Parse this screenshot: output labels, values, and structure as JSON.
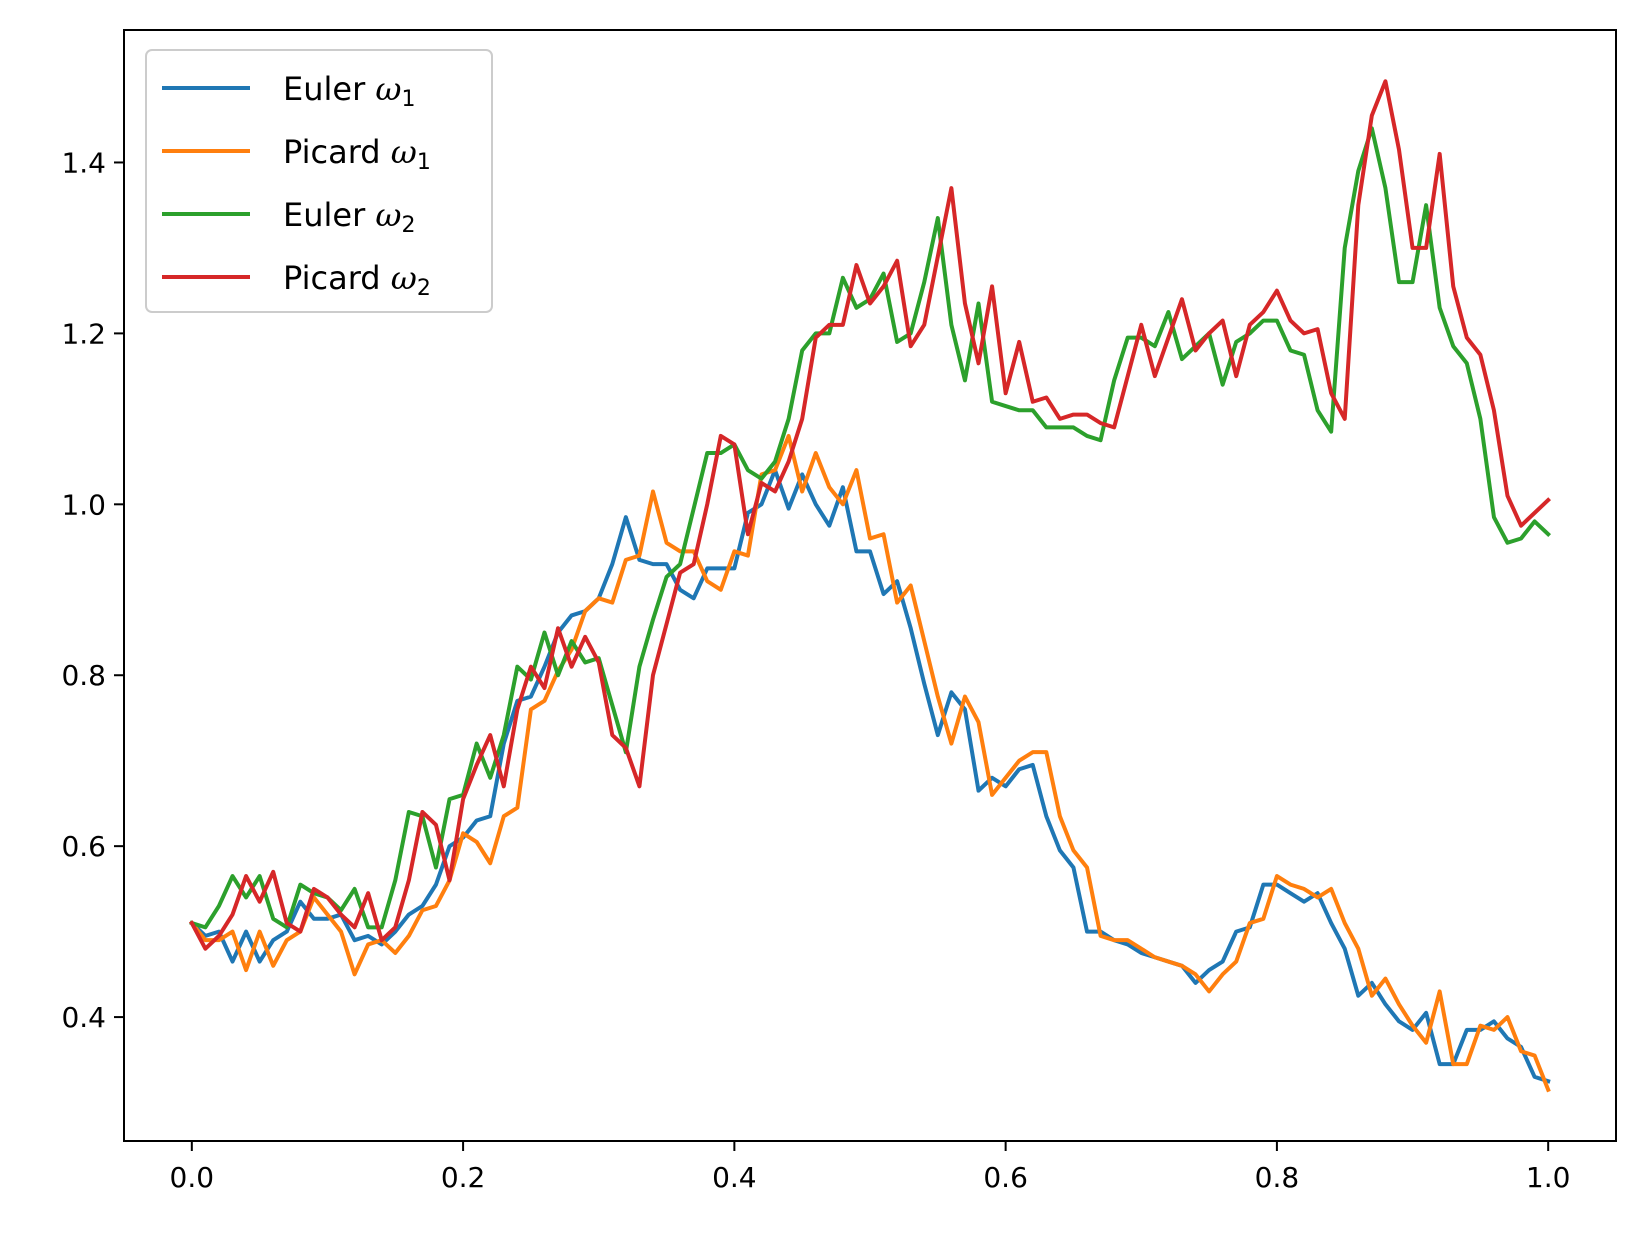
{
  "chart_data": {
    "type": "line",
    "title": "",
    "xlabel": "",
    "ylabel": "",
    "xlim": [
      -0.05,
      1.05
    ],
    "ylim": [
      0.255,
      1.555
    ],
    "xticks": [
      0.0,
      0.2,
      0.4,
      0.6,
      0.8,
      1.0
    ],
    "xtick_labels": [
      "0.0",
      "0.2",
      "0.4",
      "0.6",
      "0.8",
      "1.0"
    ],
    "yticks": [
      0.4,
      0.6,
      0.8,
      1.0,
      1.2,
      1.4
    ],
    "ytick_labels": [
      "0.4",
      "0.6",
      "0.8",
      "1.0",
      "1.2",
      "1.4"
    ],
    "grid": false,
    "legend_position": "top-left",
    "x_start": 0.0,
    "x_step": 0.01,
    "series": [
      {
        "name": "Euler",
        "symbol": "ω",
        "subscript": "1",
        "color": "#1f77b4",
        "values": [
          0.51,
          0.495,
          0.5,
          0.465,
          0.5,
          0.465,
          0.49,
          0.5,
          0.535,
          0.515,
          0.515,
          0.52,
          0.49,
          0.495,
          0.485,
          0.5,
          0.52,
          0.53,
          0.555,
          0.6,
          0.61,
          0.63,
          0.635,
          0.72,
          0.77,
          0.775,
          0.81,
          0.85,
          0.87,
          0.875,
          0.89,
          0.93,
          0.985,
          0.935,
          0.93,
          0.93,
          0.9,
          0.89,
          0.925,
          0.925,
          0.925,
          0.99,
          1.0,
          1.04,
          0.995,
          1.035,
          1.0,
          0.975,
          1.02,
          0.945,
          0.945,
          0.895,
          0.91,
          0.855,
          0.79,
          0.73,
          0.78,
          0.76,
          0.665,
          0.68,
          0.67,
          0.69,
          0.695,
          0.635,
          0.595,
          0.575,
          0.5,
          0.5,
          0.49,
          0.485,
          0.475,
          0.47,
          0.465,
          0.46,
          0.44,
          0.455,
          0.465,
          0.5,
          0.505,
          0.555,
          0.555,
          0.545,
          0.535,
          0.545,
          0.51,
          0.48,
          0.425,
          0.44,
          0.415,
          0.395,
          0.385,
          0.405,
          0.345,
          0.345,
          0.385,
          0.385,
          0.395,
          0.375,
          0.365,
          0.33,
          0.325
        ]
      },
      {
        "name": "Picard",
        "symbol": "ω",
        "subscript": "1",
        "color": "#ff7f0e",
        "values": [
          0.51,
          0.49,
          0.49,
          0.5,
          0.455,
          0.5,
          0.46,
          0.49,
          0.5,
          0.54,
          0.52,
          0.5,
          0.45,
          0.485,
          0.49,
          0.475,
          0.495,
          0.525,
          0.53,
          0.56,
          0.615,
          0.605,
          0.58,
          0.635,
          0.645,
          0.76,
          0.77,
          0.805,
          0.83,
          0.875,
          0.89,
          0.885,
          0.935,
          0.94,
          1.015,
          0.955,
          0.945,
          0.945,
          0.91,
          0.9,
          0.945,
          0.94,
          1.035,
          1.04,
          1.08,
          1.015,
          1.06,
          1.02,
          1.0,
          1.04,
          0.96,
          0.965,
          0.885,
          0.905,
          0.84,
          0.775,
          0.72,
          0.775,
          0.745,
          0.66,
          0.68,
          0.7,
          0.71,
          0.71,
          0.635,
          0.595,
          0.575,
          0.495,
          0.49,
          0.49,
          0.48,
          0.47,
          0.465,
          0.46,
          0.45,
          0.43,
          0.45,
          0.465,
          0.51,
          0.515,
          0.565,
          0.555,
          0.55,
          0.54,
          0.55,
          0.51,
          0.48,
          0.425,
          0.445,
          0.415,
          0.39,
          0.37,
          0.43,
          0.345,
          0.345,
          0.39,
          0.385,
          0.4,
          0.36,
          0.355,
          0.315
        ]
      },
      {
        "name": "Euler",
        "symbol": "ω",
        "subscript": "2",
        "color": "#2ca02c",
        "values": [
          0.51,
          0.505,
          0.53,
          0.565,
          0.54,
          0.565,
          0.515,
          0.505,
          0.555,
          0.545,
          0.54,
          0.525,
          0.55,
          0.505,
          0.505,
          0.56,
          0.64,
          0.635,
          0.575,
          0.655,
          0.66,
          0.72,
          0.68,
          0.73,
          0.81,
          0.795,
          0.85,
          0.8,
          0.84,
          0.815,
          0.82,
          0.765,
          0.71,
          0.81,
          0.865,
          0.915,
          0.93,
          0.995,
          1.06,
          1.06,
          1.07,
          1.04,
          1.03,
          1.05,
          1.1,
          1.18,
          1.2,
          1.2,
          1.265,
          1.23,
          1.24,
          1.27,
          1.19,
          1.2,
          1.26,
          1.335,
          1.21,
          1.145,
          1.235,
          1.12,
          1.115,
          1.11,
          1.11,
          1.09,
          1.09,
          1.09,
          1.08,
          1.075,
          1.145,
          1.195,
          1.195,
          1.185,
          1.225,
          1.17,
          1.185,
          1.2,
          1.14,
          1.19,
          1.2,
          1.215,
          1.215,
          1.18,
          1.175,
          1.11,
          1.085,
          1.3,
          1.39,
          1.44,
          1.37,
          1.26,
          1.26,
          1.35,
          1.23,
          1.185,
          1.165,
          1.1,
          0.985,
          0.955,
          0.96,
          0.98,
          0.965
        ]
      },
      {
        "name": "Picard",
        "symbol": "ω",
        "subscript": "2",
        "color": "#d62728",
        "values": [
          0.51,
          0.48,
          0.495,
          0.52,
          0.565,
          0.535,
          0.57,
          0.51,
          0.5,
          0.55,
          0.54,
          0.52,
          0.505,
          0.545,
          0.49,
          0.505,
          0.56,
          0.64,
          0.625,
          0.56,
          0.655,
          0.695,
          0.73,
          0.67,
          0.76,
          0.81,
          0.785,
          0.855,
          0.81,
          0.845,
          0.815,
          0.73,
          0.715,
          0.67,
          0.8,
          0.86,
          0.92,
          0.93,
          1.0,
          1.08,
          1.07,
          0.965,
          1.025,
          1.015,
          1.05,
          1.1,
          1.195,
          1.21,
          1.21,
          1.28,
          1.235,
          1.255,
          1.285,
          1.185,
          1.21,
          1.29,
          1.37,
          1.235,
          1.165,
          1.255,
          1.13,
          1.19,
          1.12,
          1.125,
          1.1,
          1.105,
          1.105,
          1.095,
          1.09,
          1.15,
          1.21,
          1.15,
          1.195,
          1.24,
          1.18,
          1.2,
          1.215,
          1.15,
          1.21,
          1.225,
          1.25,
          1.215,
          1.2,
          1.205,
          1.13,
          1.1,
          1.35,
          1.455,
          1.495,
          1.415,
          1.3,
          1.3,
          1.41,
          1.255,
          1.195,
          1.175,
          1.11,
          1.01,
          0.975,
          0.99,
          1.005
        ]
      }
    ]
  }
}
